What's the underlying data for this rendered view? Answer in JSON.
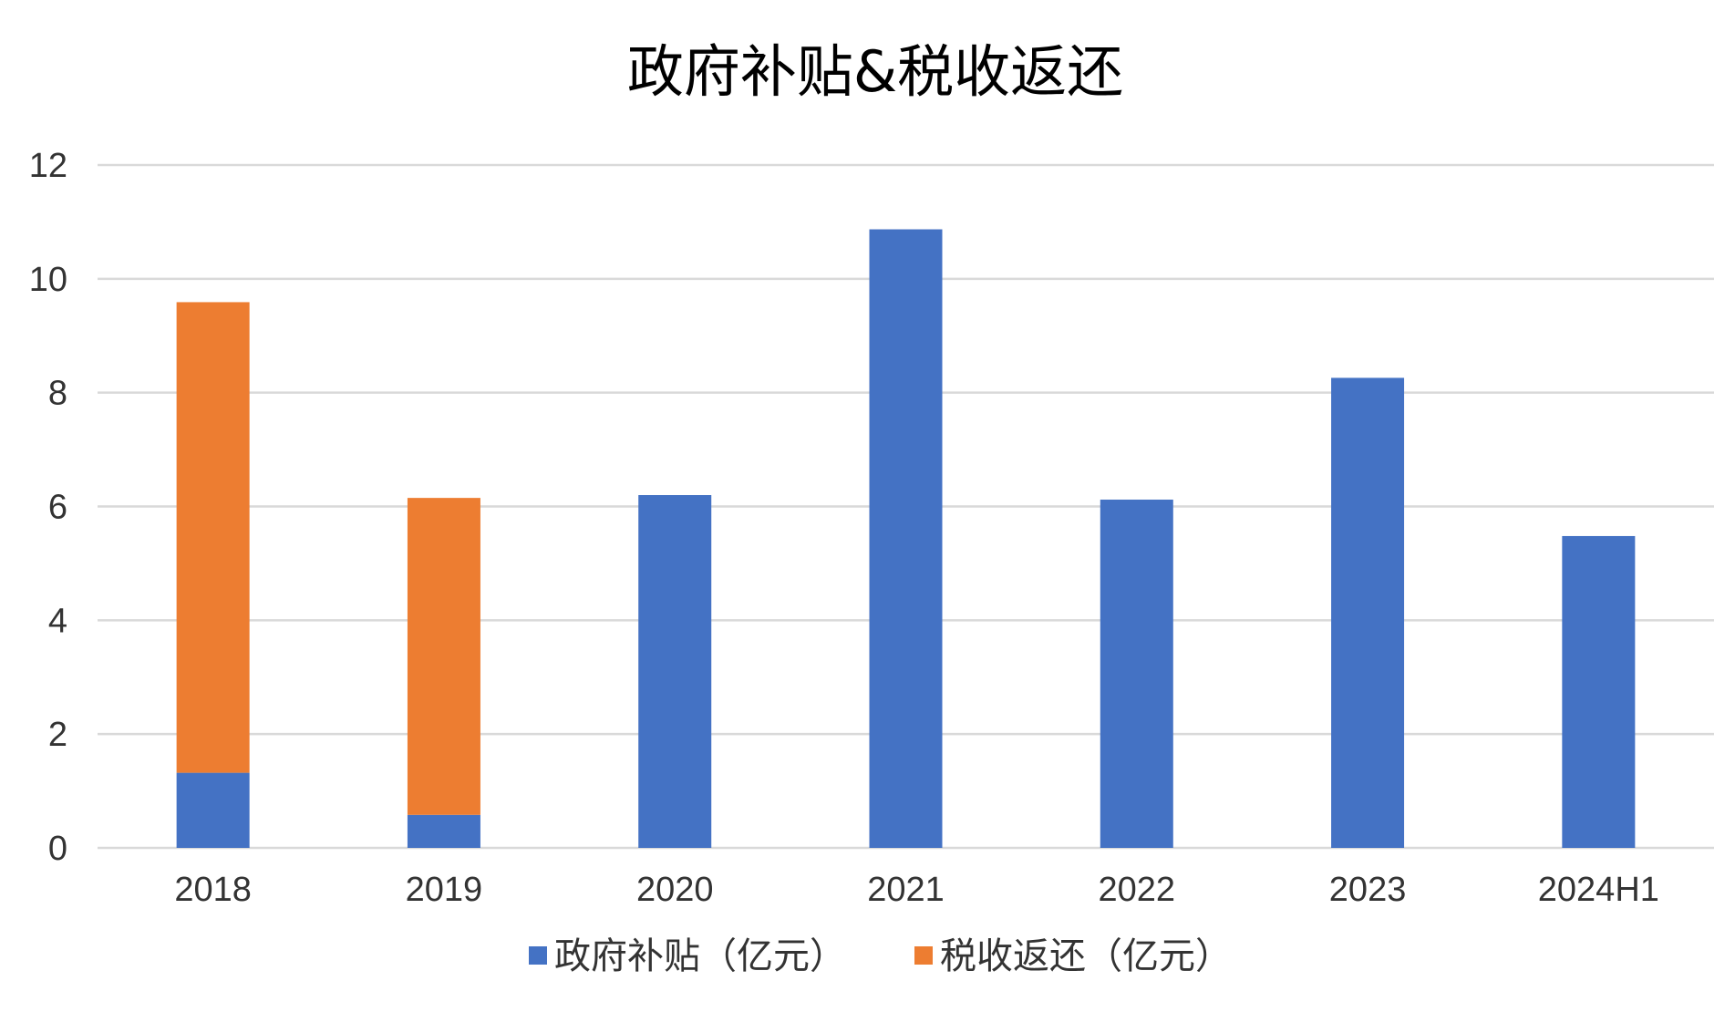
{
  "chart_data": {
    "type": "bar",
    "stacked": true,
    "title": "政府补贴&税收返还",
    "xlabel": "",
    "ylabel": "",
    "categories": [
      "2018",
      "2019",
      "2020",
      "2021",
      "2022",
      "2023",
      "2024H1"
    ],
    "series": [
      {
        "name": "政府补贴（亿元）",
        "color": "#4472C4",
        "values": [
          1.32,
          0.58,
          6.2,
          10.87,
          6.12,
          8.26,
          5.48
        ]
      },
      {
        "name": "税收返还（亿元）",
        "color": "#ED7D31",
        "values": [
          8.27,
          5.57,
          0,
          0,
          0,
          0,
          0
        ]
      }
    ],
    "ylim": [
      0,
      12
    ],
    "yticks": [
      "0",
      "2",
      "4",
      "6",
      "8",
      "10",
      "12"
    ],
    "grid": true,
    "legend": "bottom"
  }
}
